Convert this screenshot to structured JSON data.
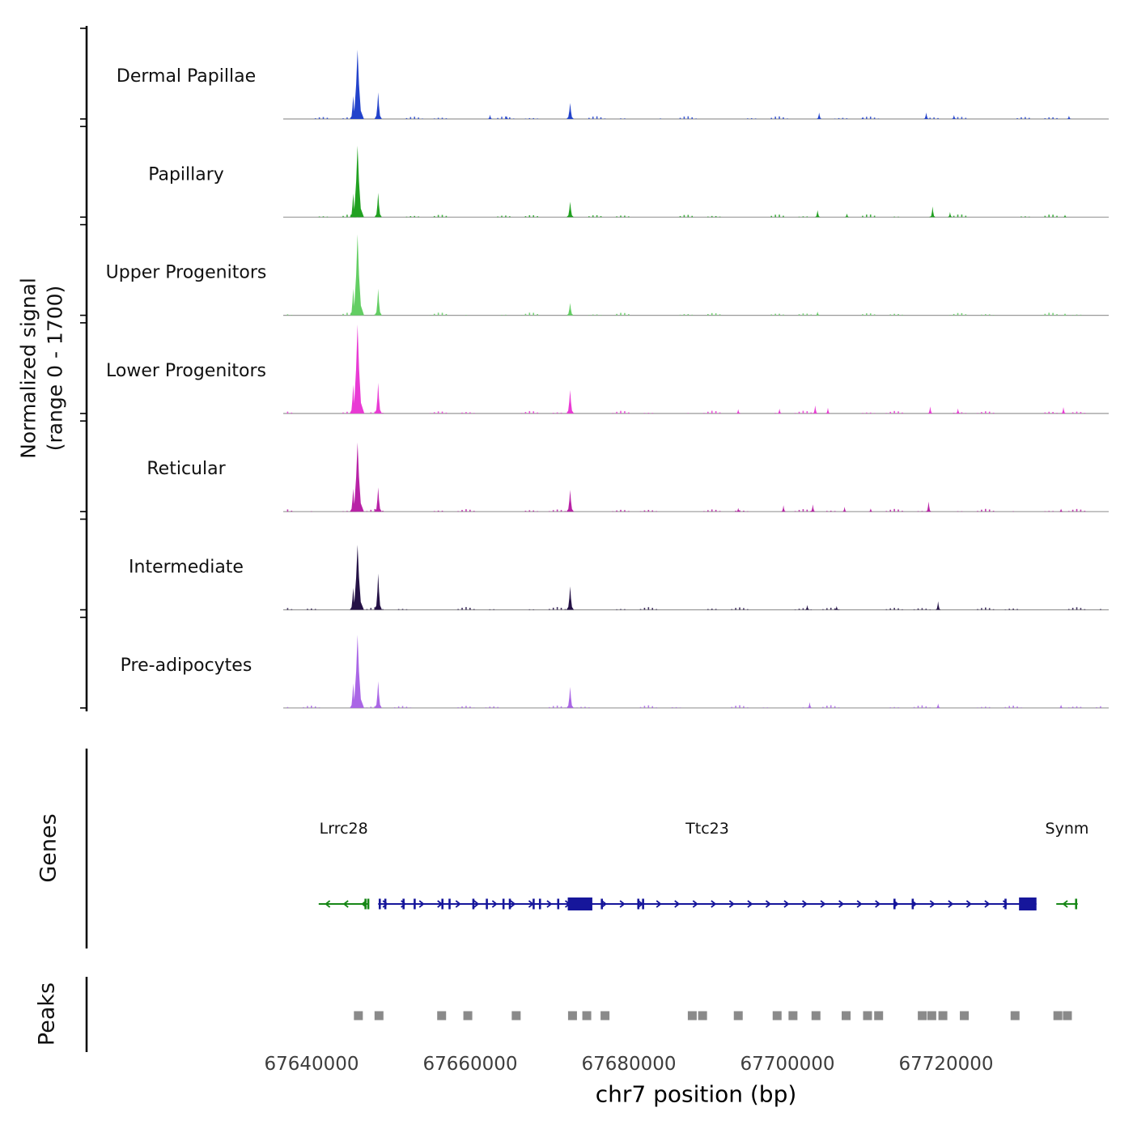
{
  "chart_data": {
    "type": "area",
    "title": "",
    "xlabel": "chr7 position (bp)",
    "ylabel": "Normalized signal",
    "ylabel_range": "(range 0 - 1700)",
    "genes_label": "Genes",
    "peaks_label": "Peaks",
    "x_range": [
      67636000,
      67740500
    ],
    "x_ticks": [
      67640000,
      67660000,
      67680000,
      67700000,
      67720000
    ],
    "y_range_per_track": [
      0,
      1700
    ],
    "grid": false,
    "legend": "none",
    "tracks": [
      {
        "name": "Dermal Papillae",
        "color": "#2343cb",
        "peaks": [
          [
            67645800,
            1300,
            800
          ],
          [
            67645250,
            430,
            420
          ],
          [
            67648400,
            500,
            470
          ],
          [
            67662500,
            80,
            300
          ],
          [
            67664600,
            55,
            260
          ],
          [
            67672600,
            300,
            460
          ],
          [
            67704000,
            120,
            340
          ],
          [
            67709500,
            40,
            260
          ],
          [
            67717500,
            120,
            340
          ],
          [
            67721000,
            75,
            300
          ],
          [
            67735500,
            60,
            290
          ]
        ]
      },
      {
        "name": "Papillary",
        "color": "#21a121",
        "peaks": [
          [
            67645800,
            1340,
            800
          ],
          [
            67645250,
            440,
            420
          ],
          [
            67648400,
            455,
            460
          ],
          [
            67672600,
            290,
            450
          ],
          [
            67703800,
            130,
            340
          ],
          [
            67707500,
            70,
            280
          ],
          [
            67718300,
            200,
            350
          ],
          [
            67720500,
            95,
            300
          ],
          [
            67735000,
            45,
            250
          ]
        ]
      },
      {
        "name": "Upper Progenitors",
        "color": "#63ce63",
        "peaks": [
          [
            67645800,
            1520,
            820
          ],
          [
            67645250,
            500,
            420
          ],
          [
            67648400,
            500,
            460
          ],
          [
            67672600,
            230,
            440
          ],
          [
            67703800,
            70,
            280
          ],
          [
            67735000,
            40,
            250
          ]
        ]
      },
      {
        "name": "Lower Progenitors",
        "color": "#e93ad4",
        "peaks": [
          [
            67645800,
            1670,
            850
          ],
          [
            67645250,
            540,
            430
          ],
          [
            67648400,
            575,
            470
          ],
          [
            67672600,
            440,
            480
          ],
          [
            67693800,
            80,
            280
          ],
          [
            67699000,
            90,
            280
          ],
          [
            67703500,
            150,
            320
          ],
          [
            67705100,
            110,
            290
          ],
          [
            67718000,
            130,
            330
          ],
          [
            67721500,
            95,
            300
          ],
          [
            67734800,
            120,
            320
          ]
        ]
      },
      {
        "name": "Reticular",
        "color": "#b822a6",
        "peaks": [
          [
            67645800,
            1300,
            800
          ],
          [
            67645250,
            430,
            420
          ],
          [
            67648400,
            455,
            460
          ],
          [
            67672600,
            410,
            470
          ],
          [
            67693800,
            70,
            280
          ],
          [
            67699500,
            120,
            300
          ],
          [
            67703200,
            135,
            310
          ],
          [
            67707200,
            90,
            280
          ],
          [
            67710500,
            60,
            260
          ],
          [
            67717800,
            190,
            340
          ],
          [
            67734500,
            55,
            260
          ]
        ]
      },
      {
        "name": "Intermediate",
        "color": "#251246",
        "peaks": [
          [
            67645800,
            1220,
            800
          ],
          [
            67645250,
            410,
            420
          ],
          [
            67648400,
            680,
            480
          ],
          [
            67672600,
            440,
            470
          ],
          [
            67702500,
            90,
            300
          ],
          [
            67706200,
            70,
            280
          ],
          [
            67719000,
            160,
            330
          ]
        ]
      },
      {
        "name": "Pre-adipocytes",
        "color": "#aa66e6",
        "peaks": [
          [
            67645800,
            1370,
            820
          ],
          [
            67645250,
            460,
            420
          ],
          [
            67648400,
            500,
            460
          ],
          [
            67672600,
            395,
            460
          ],
          [
            67702800,
            110,
            300
          ],
          [
            67719000,
            85,
            300
          ],
          [
            67734500,
            60,
            260
          ]
        ]
      }
    ],
    "genes": [
      {
        "name": "Lrrc28",
        "color": "#178717",
        "strand": "-",
        "start": 67640900,
        "end": 67647200,
        "exons": [
          67646800,
          67647150
        ],
        "thick": []
      },
      {
        "name": "Ttc23",
        "color": "#16169b",
        "strand": "+",
        "start": 67648400,
        "end": 67731400,
        "exons": [
          67648600,
          67649300,
          67651600,
          67653000,
          67656500,
          67657400,
          67660400,
          67662100,
          67664200,
          67665000,
          67668000,
          67668800,
          67671100,
          67676600,
          67681200,
          67681800,
          67713500,
          67715800,
          67727500
        ],
        "thick": [
          [
            67672300,
            67675400
          ],
          [
            67729200,
            67731400
          ]
        ]
      },
      {
        "name": "Synm",
        "color": "#178717",
        "strand": "-",
        "start": 67733900,
        "end": 67736600,
        "exons": [
          67736400
        ],
        "thick": []
      }
    ],
    "peak_regions": [
      67645900,
      67648500,
      67656400,
      67659700,
      67665800,
      67672900,
      67674700,
      67677000,
      67688000,
      67689300,
      67693800,
      67698700,
      67700700,
      67703600,
      67707400,
      67710100,
      67711500,
      67717000,
      67718200,
      67719600,
      67722300,
      67728700,
      67734100,
      67735300
    ]
  }
}
